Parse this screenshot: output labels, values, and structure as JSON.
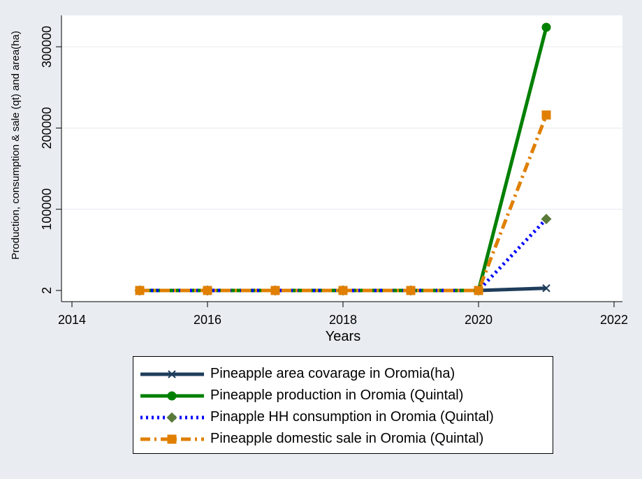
{
  "chart_data": {
    "type": "line",
    "title": "",
    "xlabel": "Years",
    "ylabel": "Production, consumption & sale (qt) and area(ha)",
    "xlim": [
      2014,
      2022
    ],
    "ylim": [
      2,
      300000
    ],
    "x_ticks": [
      "2014",
      "2016",
      "2018",
      "2020",
      "2022"
    ],
    "y_ticks": [
      "2",
      "100000",
      "200000",
      "300000"
    ],
    "grid": true,
    "legend_position": "bottom",
    "x": [
      2015,
      2016,
      2017,
      2018,
      2019,
      2020,
      2021
    ],
    "series": [
      {
        "name": "Pineapple  area covarage in Oromia(ha)",
        "values": [
          2,
          2,
          2,
          2,
          2,
          2,
          2800
        ],
        "color": "#1f3d5c",
        "marker": "x",
        "dash": "solid"
      },
      {
        "name": "Pineapple production in Oromia (Quintal)",
        "values": [
          2,
          2,
          2,
          2,
          2,
          2,
          324000
        ],
        "color": "#008000",
        "marker": "circle",
        "dash": "solid"
      },
      {
        "name": "Pinapple HH consumption in Oromia (Quintal)",
        "values": [
          2,
          2,
          2,
          2,
          2,
          2,
          88000
        ],
        "color": "#0000ff",
        "marker": "diamond",
        "marker_color": "#5a7a3a",
        "dash": "dot"
      },
      {
        "name": "Pineapple domestic sale in Oromia (Quintal)",
        "values": [
          2,
          2,
          2,
          2,
          2,
          2,
          216000
        ],
        "color": "#e07f00",
        "marker": "square",
        "dash": "dashdot"
      }
    ]
  }
}
